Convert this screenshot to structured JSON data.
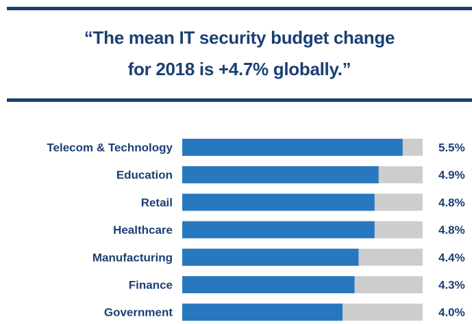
{
  "header": {
    "quote_line1": "“The mean IT security budget change",
    "quote_line2": "for 2018 is +4.7% globally.”"
  },
  "colors": {
    "rule": "#1b3f73",
    "text": "#1b3f73",
    "bar": "#2878c0",
    "track": "#cdcdcd"
  },
  "chart_data": {
    "type": "bar",
    "orientation": "horizontal",
    "categories": [
      "Telecom & Technology",
      "Education",
      "Retail",
      "Healthcare",
      "Manufacturing",
      "Finance",
      "Government"
    ],
    "values": [
      5.5,
      4.9,
      4.8,
      4.8,
      4.4,
      4.3,
      4.0
    ],
    "value_labels": [
      "5.5%",
      "4.9%",
      "4.8%",
      "4.8%",
      "4.4%",
      "4.3%",
      "4.0%"
    ],
    "xlim": [
      0,
      6
    ],
    "unit": "%",
    "grid": false,
    "legend": "none"
  }
}
